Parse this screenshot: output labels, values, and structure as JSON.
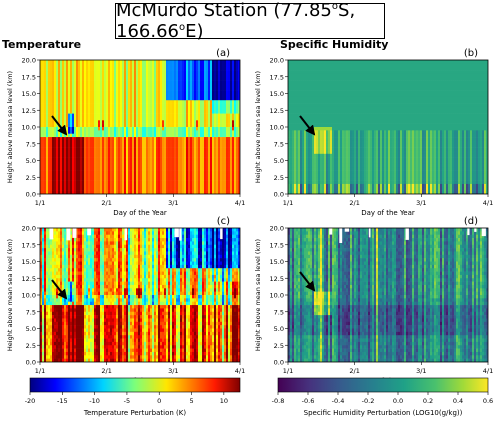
{
  "figure": {
    "title": "McMurdo Station (77.85",
    "title_sup1": "o",
    "title_mid": "S, 166.66",
    "title_sup2": "o",
    "title_end": "E)"
  },
  "colors": {
    "arrow": "#000000",
    "panel_border": "#000000",
    "humidity_background": "#2f9a8e"
  },
  "chart_data": [
    {
      "type": "heatmap",
      "panel": "(a)",
      "heading": "Temperature",
      "xlabel": "Day of the Year",
      "ylabel": "Height above mean sea level (km)",
      "xticks": [
        "1/1",
        "2/1",
        "3/1",
        "4/1"
      ],
      "yticks": [
        "0.0",
        "2.5",
        "5.0",
        "7.5",
        "10.0",
        "12.5",
        "15.0",
        "17.5",
        "20.0"
      ],
      "ylim": [
        0,
        20
      ],
      "colormap": "jet",
      "annotation": "arrow pointing at tropopause feature near mid-January"
    },
    {
      "type": "heatmap",
      "panel": "(b)",
      "heading": "Specific Humidity",
      "xlabel": "Day of the Year",
      "ylabel": "Height above mean sea level (km)",
      "xticks": [
        "1/1",
        "2/1",
        "3/1",
        "4/1"
      ],
      "yticks": [
        "0.0",
        "2.5",
        "5.0",
        "7.5",
        "10.0",
        "12.5",
        "15.0",
        "17.5",
        "20.0"
      ],
      "ylim": [
        0,
        20
      ],
      "colormap": "viridis",
      "annotation": "arrow pointing at moist feature near mid-January"
    },
    {
      "type": "heatmap",
      "panel": "(c)",
      "heading": "",
      "xlabel": "Day of the Year",
      "ylabel": "Height above mean sea level (km)",
      "xticks": [
        "1/1",
        "2/1",
        "3/1",
        "4/1"
      ],
      "yticks": [
        "0.0",
        "2.5",
        "5.0",
        "7.5",
        "10.0",
        "12.5",
        "15.0",
        "17.5",
        "20.0"
      ],
      "ylim": [
        0,
        20
      ],
      "colormap": "jet"
    },
    {
      "type": "heatmap",
      "panel": "(d)",
      "heading": "",
      "xlabel": "Day of the Year",
      "ylabel": "Height above mean sea level (km)",
      "xticks": [
        "1/1",
        "2/1",
        "3/1",
        "4/1"
      ],
      "yticks": [
        "0.0",
        "2.5",
        "5.0",
        "7.5",
        "10.0",
        "12.5",
        "15.0",
        "17.5",
        "20.0"
      ],
      "ylim": [
        0,
        20
      ],
      "colormap": "viridis"
    }
  ],
  "colorbars": [
    {
      "label": "Temperature Perturbation (K)",
      "ticks": [
        "-20",
        "-15",
        "-10",
        "-5",
        "0",
        "5",
        "10"
      ],
      "range": [
        -20,
        12.5
      ],
      "colormap": "jet"
    },
    {
      "label": "Specific Humidity Perturbation (LOG10(g/kg))",
      "ticks": [
        "-0.8",
        "-0.6",
        "-0.4",
        "-0.2",
        "0.0",
        "0.2",
        "0.4",
        "0.6"
      ],
      "range": [
        -0.8,
        0.6
      ],
      "colormap": "viridis"
    }
  ]
}
